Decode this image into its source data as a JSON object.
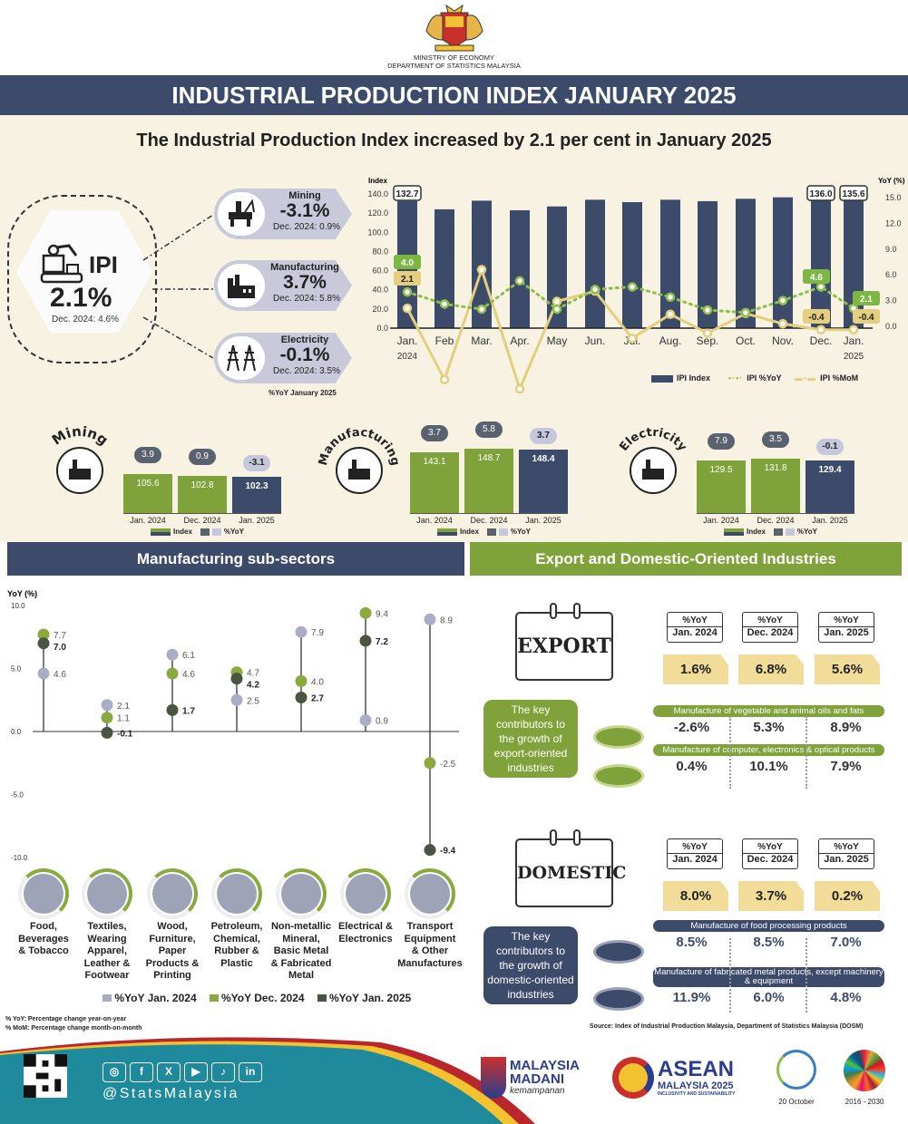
{
  "header": {
    "ministry": "MINISTRY OF ECONOMY",
    "department": "DEPARTMENT OF STATISTICS MALAYSIA",
    "title": "INDUSTRIAL PRODUCTION INDEX JANUARY 2025",
    "subtitle": "The Industrial Production Index increased by 2.1 per cent in January 2025"
  },
  "ipi": {
    "label": "IPI",
    "value": "2.1%",
    "dec": "Dec. 2024: 4.6%"
  },
  "sectors": [
    {
      "name": "Mining",
      "value": "-3.1%",
      "dec": "Dec. 2024: 0.9%",
      "icon": "mining-rig-icon"
    },
    {
      "name": "Manufacturing",
      "value": "3.7%",
      "dec": "Dec. 2024: 5.8%",
      "icon": "factory-icon"
    },
    {
      "name": "Electricity",
      "value": "-0.1%",
      "dec": "Dec. 2024: 3.5%",
      "icon": "pylon-icon"
    }
  ],
  "yoy_note": "%YoY January 2025",
  "colors": {
    "navy": "#3d4b6b",
    "green": "#7fa33a",
    "yoy_line": "#8dc04a",
    "mom_line": "#e3cf7d",
    "cream": "#f7f2e2",
    "teal": "#1f8a9c"
  },
  "chart_data": [
    {
      "type": "bar+line",
      "left_axis_label": "Index",
      "right_axis_label": "YoY (%)",
      "left_ticks": [
        "0.0",
        "20.0",
        "40.0",
        "60.0",
        "80.0",
        "100.0",
        "120.0",
        "140.0"
      ],
      "ylim_left": [
        0,
        140
      ],
      "right_ticks": [
        "0.0",
        "3.0",
        "6.0",
        "9.0",
        "12.0",
        "15.0"
      ],
      "ylim_right": [
        0,
        15
      ],
      "categories": [
        "Jan.|2024",
        "Feb",
        "Mar.",
        "Apr.",
        "May",
        "Jun.",
        "Jul.",
        "Aug.",
        "Sep.",
        "Oct.",
        "Nov.",
        "Dec.",
        "Jan.|2025"
      ],
      "series": [
        {
          "name": "IPI Index",
          "type": "bar",
          "axis": "left",
          "values": [
            132.7,
            124.0,
            133.0,
            123.0,
            127.0,
            134.0,
            131.5,
            134.0,
            132.5,
            135.0,
            136.5,
            136.0,
            135.6
          ],
          "labels": {
            "0": "132.7",
            "11": "136.0",
            "12": "135.6"
          }
        },
        {
          "name": "IPI %YoY",
          "type": "line-dotted",
          "axis": "right",
          "values": [
            4.0,
            2.6,
            2.0,
            5.3,
            2.0,
            4.3,
            4.6,
            3.4,
            1.9,
            1.6,
            3.0,
            4.6,
            2.1
          ],
          "labels": {
            "0": "4.0",
            "11": "4.6",
            "12": "2.1"
          }
        },
        {
          "name": "IPI %MoM",
          "type": "line",
          "axis": "right",
          "values": [
            2.1,
            -6.2,
            6.6,
            -7.3,
            2.9,
            4.1,
            -1.4,
            1.4,
            -0.8,
            1.5,
            0.3,
            -0.4,
            -0.4
          ],
          "labels": {
            "0": "2.1",
            "11": "-0.4",
            "12": "-0.4"
          }
        }
      ],
      "legend": "bottom-right"
    },
    {
      "type": "bar",
      "title": "Mining",
      "categories": [
        "Jan. 2024",
        "Dec. 2024",
        "Jan. 2025"
      ],
      "index": [
        105.6,
        102.8,
        102.3
      ],
      "yoy": [
        3.9,
        0.9,
        -3.1
      ],
      "legend": [
        "Index",
        "%YoY"
      ]
    },
    {
      "type": "bar",
      "title": "Manufacturing",
      "categories": [
        "Jan. 2024",
        "Dec. 2024",
        "Jan. 2025"
      ],
      "index": [
        143.1,
        148.7,
        148.4
      ],
      "yoy": [
        3.7,
        5.8,
        3.7
      ],
      "legend": [
        "Index",
        "%YoY"
      ]
    },
    {
      "type": "bar",
      "title": "Electricity",
      "categories": [
        "Jan. 2024",
        "Dec. 2024",
        "Jan. 2025"
      ],
      "index": [
        129.5,
        131.8,
        129.4
      ],
      "yoy": [
        7.9,
        3.5,
        -0.1
      ],
      "legend": [
        "Index",
        "%YoY"
      ]
    },
    {
      "type": "dot-plot",
      "ylabel": "YoY (%)",
      "yticks": [
        "10.0",
        "5.0",
        "0.0",
        "-5.0",
        "-10.0"
      ],
      "ylim": [
        -10,
        10
      ],
      "categories": [
        "Food, Beverages & Tobacco",
        "Textiles, Wearing Apparel, Leather & Footwear",
        "Wood, Furniture, Paper Products & Printing",
        "Petroleum, Chemical, Rubber & Plastic",
        "Non-metallic Mineral, Basic Metal & Fabricated Metal",
        "Electrical & Electronics",
        "Transport Equipment & Other Manufactures"
      ],
      "series": [
        {
          "name": "%YoY Jan. 2024",
          "color": "#a9adc6",
          "values": [
            4.6,
            2.1,
            6.1,
            2.5,
            7.9,
            0.9,
            8.9
          ]
        },
        {
          "name": "%YoY Dec. 2024",
          "color": "#8aaa3f",
          "values": [
            7.7,
            1.1,
            4.6,
            4.7,
            4.0,
            9.4,
            -2.5
          ]
        },
        {
          "name": "%YoY Jan. 2025",
          "color": "#4a5440",
          "values": [
            7.0,
            -0.1,
            1.7,
            4.2,
            2.7,
            7.2,
            -9.4
          ]
        }
      ],
      "legend": "bottom"
    }
  ],
  "sections": {
    "manufacturing": "Manufacturing sub-sectors",
    "export_domestic": "Export and Domestic-Oriented Industries"
  },
  "subsector_labels": [
    [
      "Food,",
      "Beverages",
      "& Tobacco"
    ],
    [
      "Textiles,",
      "Wearing",
      "Apparel,",
      "Leather &",
      "Footwear"
    ],
    [
      "Wood,",
      "Furniture,",
      "Paper",
      "Products &",
      "Printing"
    ],
    [
      "Petroleum,",
      "Chemical,",
      "Rubber &",
      "Plastic"
    ],
    [
      "Non-metallic",
      "Mineral,",
      "Basic Metal",
      "& Fabricated",
      "Metal"
    ],
    [
      "Electrical &",
      "Electronics"
    ],
    [
      "Transport",
      "Equipment",
      "& Other",
      "Manufactures"
    ]
  ],
  "export": {
    "label": "EXPORT",
    "yoy_label": "%YoY",
    "periods": [
      "Jan. 2024",
      "Dec. 2024",
      "Jan. 2025"
    ],
    "values": [
      "1.6%",
      "6.8%",
      "5.6%"
    ],
    "contrib": "The key contributors to the growth of export-oriented industries",
    "items": [
      {
        "name": "Manufacture of vegetable and animal oils and fats",
        "values": [
          "-2.6%",
          "5.3%",
          "8.9%"
        ]
      },
      {
        "name": "Manufacture of computer, electronics & optical products",
        "values": [
          "0.4%",
          "10.1%",
          "7.9%"
        ]
      }
    ]
  },
  "domestic": {
    "label": "DOMESTIC",
    "yoy_label": "%YoY",
    "periods": [
      "Jan. 2024",
      "Dec. 2024",
      "Jan. 2025"
    ],
    "values": [
      "8.0%",
      "3.7%",
      "0.2%"
    ],
    "contrib": "The key contributors to the growth of domestic-oriented industries",
    "items": [
      {
        "name": "Manufacture of food processing products",
        "values": [
          "8.5%",
          "8.5%",
          "7.0%"
        ]
      },
      {
        "name": "Manufacture of fabricated metal products, except machinery & equipment",
        "values": [
          "11.9%",
          "6.0%",
          "4.8%"
        ]
      }
    ]
  },
  "notes": [
    "% YoY: Percentage change year-on-year",
    "% MoM: Percentage change month-on-month"
  ],
  "source": "Source: Index of Industrial Production Malaysia, Department of Statistics Malaysia (DOSM)",
  "footer": {
    "handle": "@StatsMalaysia",
    "social": [
      "instagram-icon",
      "facebook-icon",
      "x-icon",
      "youtube-icon",
      "tiktok-icon",
      "linkedin-icon"
    ],
    "social_glyphs": [
      "◎",
      "f",
      "X",
      "▶",
      "♪",
      "in"
    ],
    "madani": [
      "MALAYSIA",
      "MADANI",
      "kemampanan"
    ],
    "asean": [
      "ASEAN",
      "MALAYSIA 2025",
      "INCLUSIVITY AND SUSTAINABILITY"
    ],
    "stats_day": "20 October",
    "sdg": "2016 - 2030"
  }
}
